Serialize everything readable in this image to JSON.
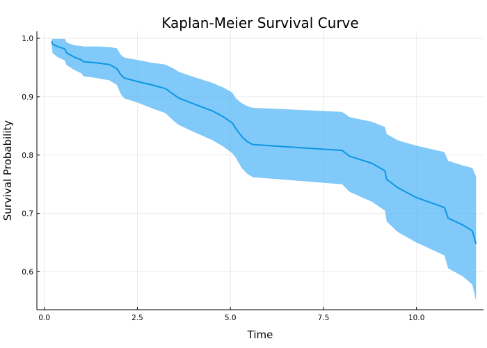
{
  "chart_data": {
    "type": "area",
    "title": "Kaplan-Meier Survival Curve",
    "xlabel": "Time",
    "ylabel": "Survival Probability",
    "xlim": [
      -0.2,
      11.8
    ],
    "ylim": [
      0.535,
      1.012
    ],
    "xticks": [
      {
        "value": 0.0,
        "label": "0.0"
      },
      {
        "value": 2.5,
        "label": "2.5"
      },
      {
        "value": 5.0,
        "label": "5.0"
      },
      {
        "value": 7.5,
        "label": "7.5"
      },
      {
        "value": 10.0,
        "label": "10.0"
      }
    ],
    "yticks": [
      {
        "value": 0.6,
        "label": "0.6"
      },
      {
        "value": 0.7,
        "label": "0.7"
      },
      {
        "value": 0.8,
        "label": "0.8"
      },
      {
        "value": 0.9,
        "label": "0.9"
      },
      {
        "value": 1.0,
        "label": "1.0"
      }
    ],
    "grid": true,
    "legend": "none",
    "colors": {
      "line": "#0b96e6",
      "band": "#56b7f5",
      "band_opacity": 0.75
    },
    "series": [
      {
        "x": [
          0.2,
          0.22,
          0.35,
          0.55,
          0.6,
          0.8,
          1.0,
          1.05,
          1.4,
          1.75,
          1.95,
          2.05,
          2.15,
          2.5,
          2.9,
          3.25,
          3.45,
          3.6,
          4.0,
          4.5,
          4.8,
          5.05,
          5.15,
          5.3,
          5.45,
          5.6,
          8.0,
          8.2,
          8.8,
          9.15,
          9.2,
          9.5,
          10.0,
          10.75,
          10.85,
          11.25,
          11.5,
          11.6
        ],
        "y": [
          0.995,
          0.99,
          0.986,
          0.982,
          0.975,
          0.968,
          0.963,
          0.96,
          0.958,
          0.955,
          0.948,
          0.938,
          0.932,
          0.926,
          0.92,
          0.914,
          0.905,
          0.898,
          0.888,
          0.876,
          0.866,
          0.855,
          0.845,
          0.832,
          0.823,
          0.818,
          0.808,
          0.798,
          0.786,
          0.773,
          0.758,
          0.744,
          0.727,
          0.71,
          0.692,
          0.68,
          0.67,
          0.648
        ],
        "lower": [
          0.99,
          0.975,
          0.968,
          0.962,
          0.954,
          0.946,
          0.94,
          0.935,
          0.932,
          0.928,
          0.92,
          0.905,
          0.897,
          0.89,
          0.88,
          0.872,
          0.86,
          0.852,
          0.84,
          0.826,
          0.815,
          0.803,
          0.795,
          0.778,
          0.768,
          0.762,
          0.75,
          0.737,
          0.72,
          0.705,
          0.686,
          0.668,
          0.65,
          0.628,
          0.606,
          0.592,
          0.578,
          0.55
        ],
        "upper": [
          0.999,
          0.999,
          0.999,
          0.999,
          0.993,
          0.988,
          0.987,
          0.986,
          0.986,
          0.985,
          0.983,
          0.972,
          0.967,
          0.963,
          0.958,
          0.955,
          0.949,
          0.943,
          0.934,
          0.924,
          0.916,
          0.907,
          0.897,
          0.889,
          0.884,
          0.881,
          0.874,
          0.865,
          0.857,
          0.848,
          0.836,
          0.825,
          0.816,
          0.805,
          0.79,
          0.782,
          0.778,
          0.763
        ]
      }
    ]
  }
}
